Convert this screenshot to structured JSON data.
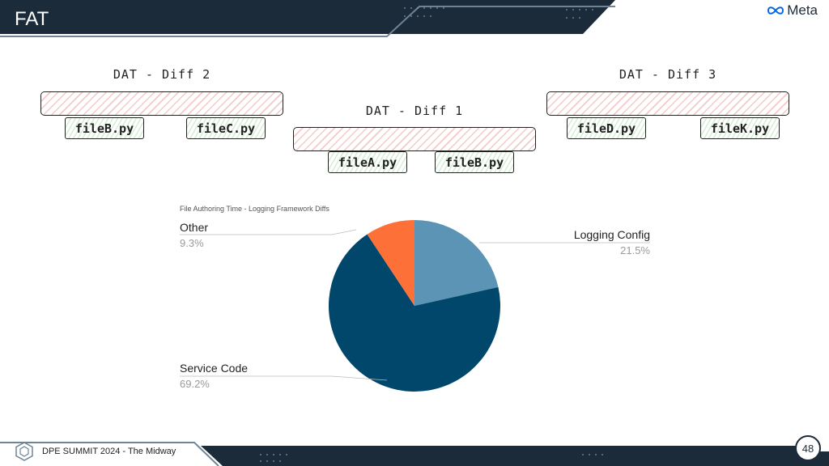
{
  "header": {
    "title": "FAT",
    "brand": "Meta"
  },
  "diffs": [
    {
      "label": "DAT - Diff 2",
      "files": [
        "fileB.py",
        "fileC.py"
      ]
    },
    {
      "label": "DAT - Diff 1",
      "files": [
        "fileA.py",
        "fileB.py"
      ]
    },
    {
      "label": "DAT - Diff 3",
      "files": [
        "fileD.py",
        "fileK.py"
      ]
    }
  ],
  "chart_data": {
    "type": "pie",
    "title": "File Authoring Time - Logging Framework Diffs",
    "slices": [
      {
        "label": "Logging Config",
        "value": 21.5,
        "pct_text": "21.5%",
        "color": "#5b94b4"
      },
      {
        "label": "Service Code",
        "value": 69.2,
        "pct_text": "69.2%",
        "color": "#01476b"
      },
      {
        "label": "Other",
        "value": 9.3,
        "pct_text": "9.3%",
        "color": "#fd7037"
      }
    ]
  },
  "footer": {
    "event": "DPE SUMMIT 2024 - The Midway",
    "page": "48"
  },
  "colors": {
    "dark": "#1c2b39",
    "accent_line": "#6f8597"
  }
}
